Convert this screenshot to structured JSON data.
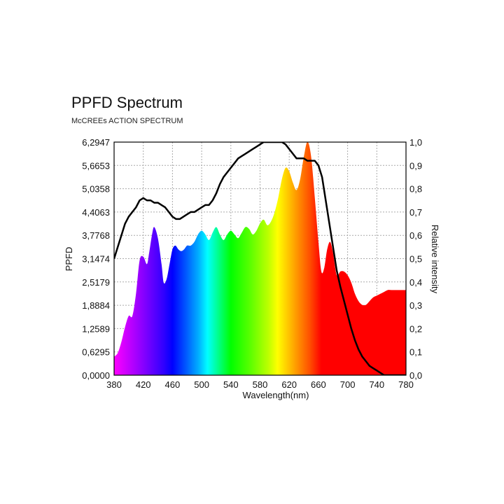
{
  "title": "PPFD Spectrum",
  "subtitle": "McCREEs ACTION SPECTRUM",
  "colors": {
    "action_line": "#000000",
    "grid": "#aaaaaa",
    "frame": "#000000"
  },
  "chart_data": {
    "type": "area",
    "title": "PPFD Spectrum",
    "subtitle": "McCREEs ACTION SPECTRUM",
    "xlabel": "Wavelength(nm)",
    "ylabel": "PPFD",
    "y2label": "Relative intensity",
    "xlim": [
      380,
      780
    ],
    "ylim": [
      0,
      6.2947
    ],
    "y2lim": [
      0,
      1.0
    ],
    "grid": true,
    "x_ticks": [
      380,
      420,
      460,
      500,
      540,
      580,
      620,
      660,
      700,
      740,
      780
    ],
    "y_ticks": [
      "0,0000",
      "0,6295",
      "1,2589",
      "1,8884",
      "2,5179",
      "3,1474",
      "3,7768",
      "4,4063",
      "5,0358",
      "5,6653",
      "6,2947"
    ],
    "y2_ticks": [
      "0,0",
      "0,1",
      "0,2",
      "0,3",
      "0,4",
      "0,5",
      "0,6",
      "0,7",
      "0,8",
      "0,9",
      "1,0"
    ],
    "series": [
      {
        "kind": "area",
        "fill": "spectrum-colors",
        "x": [
          380,
          385,
          390,
          395,
          400,
          405,
          410,
          415,
          420,
          425,
          428,
          432,
          435,
          440,
          445,
          448,
          452,
          456,
          460,
          464,
          468,
          472,
          476,
          480,
          485,
          490,
          495,
          500,
          505,
          510,
          515,
          520,
          525,
          530,
          535,
          540,
          545,
          550,
          555,
          560,
          565,
          570,
          575,
          580,
          585,
          590,
          595,
          600,
          605,
          610,
          615,
          620,
          625,
          630,
          635,
          640,
          645,
          650,
          655,
          660,
          664,
          668,
          672,
          676,
          680,
          685,
          690,
          695,
          700,
          705,
          710,
          715,
          720,
          725,
          730,
          735,
          740,
          745,
          750,
          755,
          760,
          765,
          770,
          775,
          780
        ],
        "y": [
          0.5,
          0.6,
          0.9,
          1.3,
          1.6,
          1.6,
          2.2,
          3.1,
          3.2,
          3.0,
          3.3,
          3.8,
          4.0,
          3.7,
          3.0,
          2.5,
          2.6,
          3.0,
          3.4,
          3.5,
          3.4,
          3.35,
          3.4,
          3.5,
          3.5,
          3.6,
          3.8,
          3.9,
          3.8,
          3.65,
          3.85,
          4.0,
          3.8,
          3.65,
          3.8,
          3.9,
          3.8,
          3.7,
          3.85,
          4.0,
          3.95,
          3.8,
          3.9,
          4.1,
          4.2,
          4.05,
          4.15,
          4.4,
          4.8,
          5.3,
          5.6,
          5.5,
          5.2,
          5.0,
          5.3,
          5.9,
          6.3,
          5.9,
          4.8,
          3.6,
          2.8,
          2.9,
          3.4,
          3.6,
          3.3,
          2.7,
          2.8,
          2.8,
          2.7,
          2.5,
          2.2,
          2.0,
          1.9,
          1.9,
          2.0,
          2.1,
          2.15,
          2.2,
          2.25,
          2.3,
          2.3,
          2.3,
          2.3,
          2.3,
          2.3
        ]
      },
      {
        "kind": "line",
        "axis": "y2",
        "x": [
          380,
          385,
          390,
          395,
          400,
          405,
          410,
          415,
          420,
          425,
          430,
          435,
          440,
          445,
          450,
          455,
          460,
          465,
          470,
          475,
          480,
          485,
          490,
          495,
          500,
          505,
          510,
          515,
          520,
          525,
          530,
          535,
          540,
          545,
          550,
          555,
          560,
          565,
          570,
          575,
          580,
          585,
          590,
          595,
          600,
          605,
          610,
          615,
          620,
          625,
          630,
          635,
          640,
          645,
          650,
          655,
          660,
          665,
          670,
          675,
          680,
          685,
          690,
          695,
          700,
          705,
          710,
          715,
          720,
          725,
          730,
          735,
          740,
          745,
          750,
          755,
          760,
          765,
          770,
          775,
          780
        ],
        "y": [
          0.5,
          0.55,
          0.6,
          0.65,
          0.68,
          0.7,
          0.72,
          0.75,
          0.76,
          0.75,
          0.75,
          0.74,
          0.74,
          0.73,
          0.72,
          0.7,
          0.68,
          0.67,
          0.67,
          0.68,
          0.69,
          0.7,
          0.7,
          0.71,
          0.72,
          0.73,
          0.73,
          0.75,
          0.78,
          0.82,
          0.85,
          0.87,
          0.89,
          0.91,
          0.93,
          0.94,
          0.95,
          0.96,
          0.97,
          0.98,
          0.99,
          1.0,
          1.0,
          1.0,
          1.0,
          1.0,
          1.0,
          0.99,
          0.97,
          0.95,
          0.93,
          0.93,
          0.93,
          0.92,
          0.92,
          0.92,
          0.9,
          0.85,
          0.75,
          0.65,
          0.55,
          0.45,
          0.38,
          0.32,
          0.26,
          0.2,
          0.15,
          0.11,
          0.08,
          0.06,
          0.04,
          0.03,
          0.02,
          0.01,
          0.0,
          0.0,
          0.0,
          0.0,
          0.0,
          0.0,
          0.0
        ]
      }
    ]
  }
}
